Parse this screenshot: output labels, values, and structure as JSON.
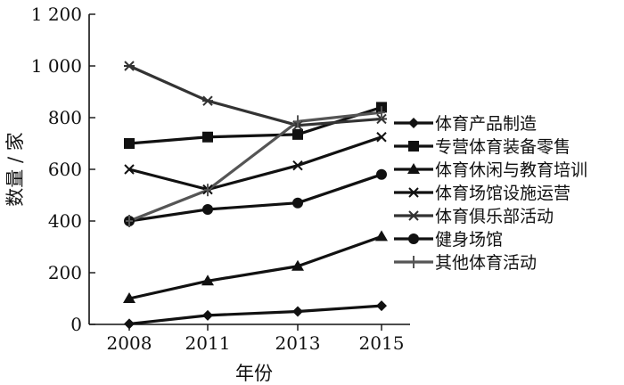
{
  "chart_data": {
    "type": "line",
    "xlabel": "年份",
    "ylabel": "数量 / 家",
    "categories": [
      "2008",
      "2011",
      "2013",
      "2015"
    ],
    "ylim": [
      0,
      1200
    ],
    "yticks": [
      0,
      200,
      400,
      600,
      800,
      1000,
      1200
    ],
    "ytick_labels": [
      "0",
      "200",
      "400",
      "600",
      "800",
      "1 000",
      "1 200"
    ],
    "grid": false,
    "legend_position": "right",
    "series": [
      {
        "name": "体育产品制造",
        "values": [
          2,
          35,
          50,
          72
        ],
        "marker": "diamond",
        "color": "#111111"
      },
      {
        "name": "专营体育装备零售",
        "values": [
          700,
          725,
          735,
          840
        ],
        "marker": "square",
        "color": "#111111"
      },
      {
        "name": "体育休闲与教育培训",
        "values": [
          100,
          168,
          225,
          340
        ],
        "marker": "triangle",
        "color": "#111111"
      },
      {
        "name": "体育场馆设施运营",
        "values": [
          600,
          522,
          615,
          725
        ],
        "marker": "x",
        "color": "#111111"
      },
      {
        "name": "体育俱乐部活动",
        "values": [
          1000,
          865,
          770,
          795
        ],
        "marker": "asterisk",
        "color": "#333333"
      },
      {
        "name": "健身场馆",
        "values": [
          400,
          445,
          470,
          580
        ],
        "marker": "circle",
        "color": "#111111"
      },
      {
        "name": "其他体育活动",
        "values": [
          400,
          520,
          785,
          820
        ],
        "marker": "plus",
        "color": "#555555"
      }
    ]
  }
}
